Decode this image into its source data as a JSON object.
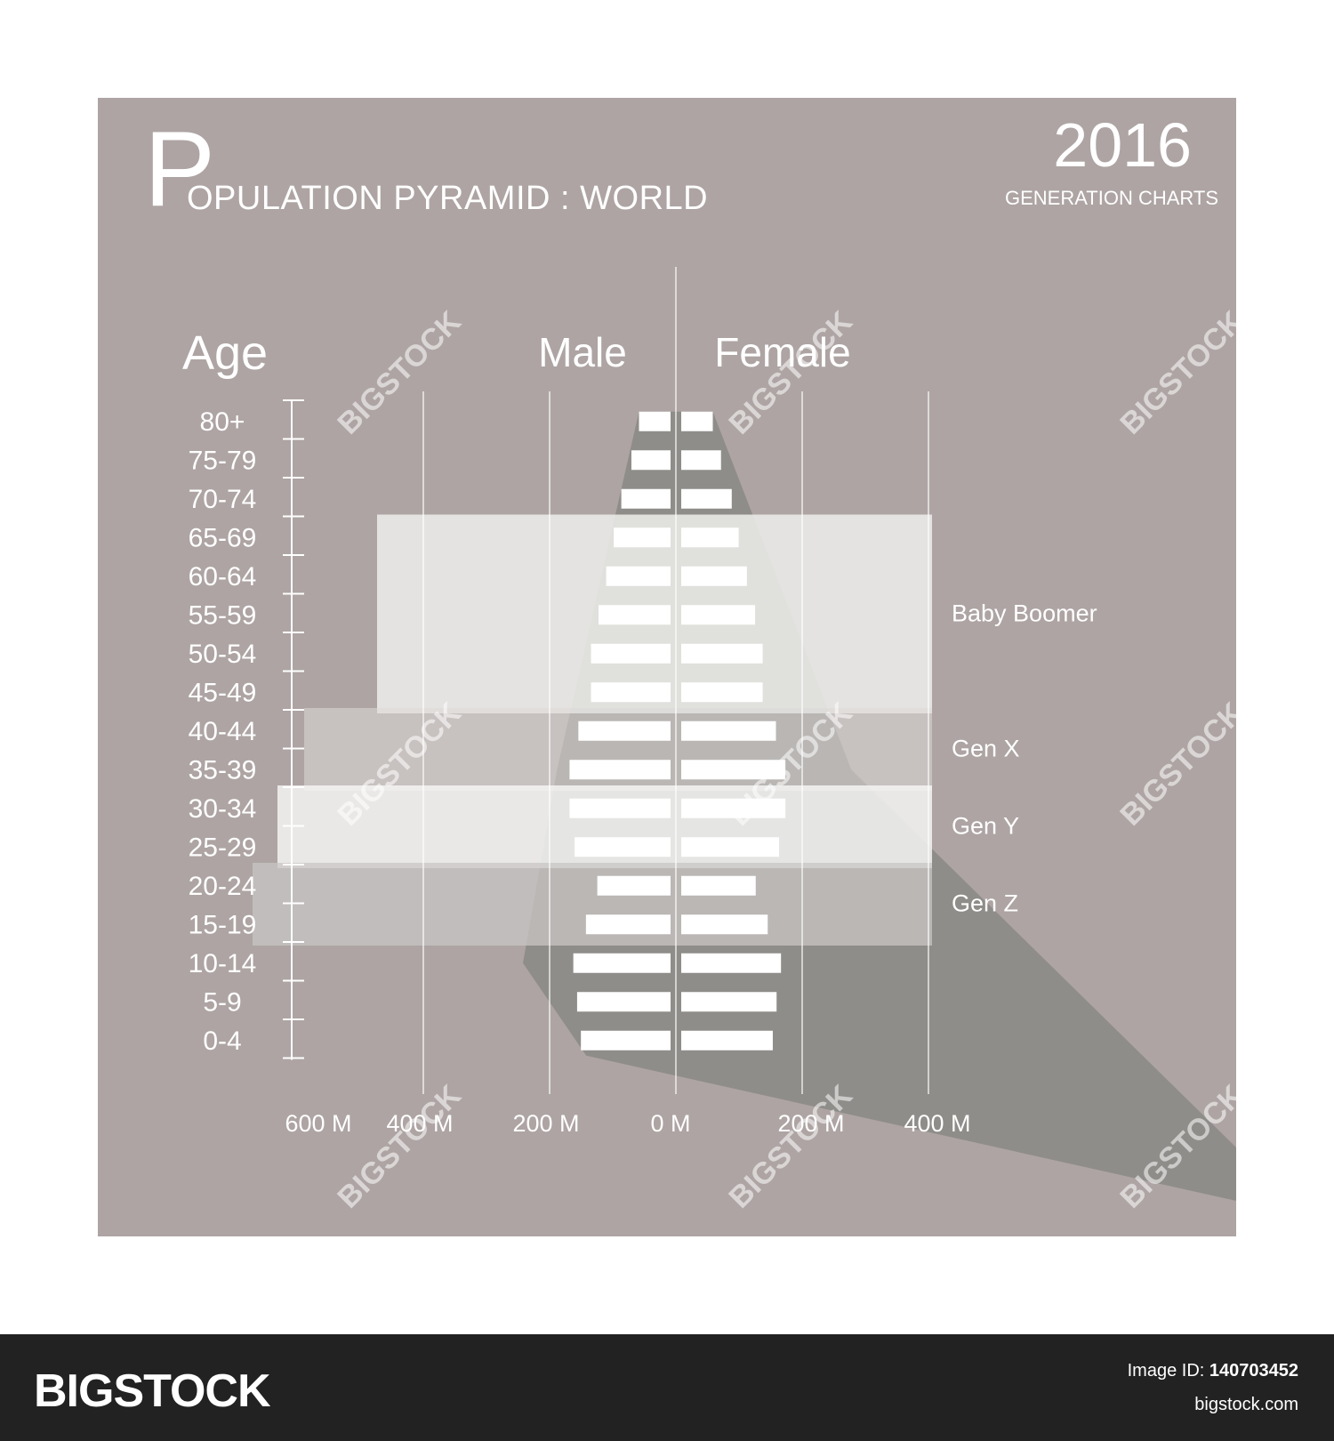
{
  "title": {
    "first_letter": "P",
    "rest": "OPULATION PYRAMID : WORLD",
    "year": "2016",
    "subtitle": "GENERATION CHARTS"
  },
  "headers": {
    "age": "Age",
    "male": "Male",
    "female": "Female"
  },
  "footer": {
    "brand": "BIGSTOCK",
    "image_id_label": "Image ID:",
    "image_id": "140703452",
    "site": "bigstock.com"
  },
  "watermark": "BIGSTOCK",
  "colors": {
    "panel": "#ada4a3",
    "bar": "#ffffff",
    "shadow": "#8f8d89",
    "footer": "#222222"
  },
  "chart_data": {
    "type": "bar",
    "orientation": "horizontal-pyramid",
    "categories": [
      "80+",
      "75-79",
      "70-74",
      "65-69",
      "60-64",
      "55-59",
      "50-54",
      "45-49",
      "40-44",
      "35-39",
      "30-34",
      "25-29",
      "20-24",
      "15-19",
      "10-14",
      "5-9",
      "0-4"
    ],
    "series": [
      {
        "name": "Male",
        "values": [
          50,
          62,
          78,
          90,
          102,
          114,
          126,
          126,
          146,
          160,
          160,
          152,
          116,
          134,
          154,
          148,
          142
        ]
      },
      {
        "name": "Female",
        "values": [
          50,
          63,
          80,
          91,
          104,
          117,
          129,
          129,
          150,
          165,
          165,
          155,
          118,
          137,
          158,
          151,
          145
        ]
      }
    ],
    "x_tick_labels_left": [
      "600 M",
      "400 M",
      "200 M",
      "0 M"
    ],
    "x_tick_labels_right": [
      "200 M",
      "400 M"
    ],
    "generations": [
      {
        "label": "Baby Boomer",
        "from": "65-69",
        "to": "45-49"
      },
      {
        "label": "Gen X",
        "from": "40-44",
        "to": "35-39"
      },
      {
        "label": "Gen Y",
        "from": "30-34",
        "to": "25-29"
      },
      {
        "label": "Gen Z",
        "from": "20-24",
        "to": "15-19"
      }
    ]
  }
}
